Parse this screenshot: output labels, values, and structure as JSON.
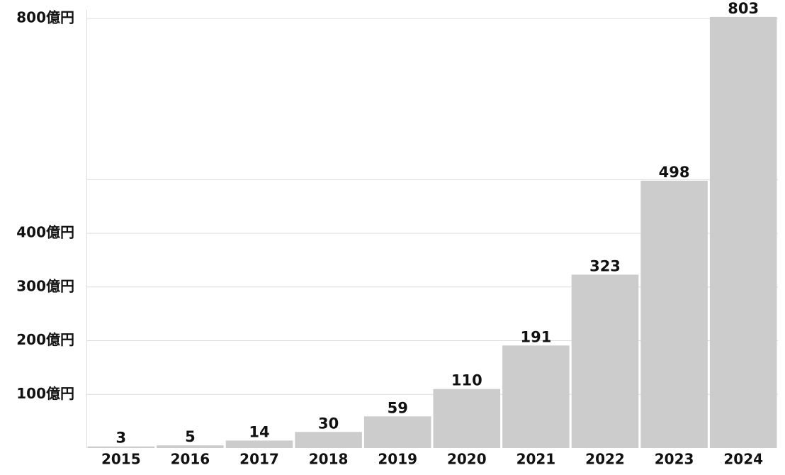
{
  "chart_data": {
    "type": "bar",
    "categories": [
      "2015",
      "2016",
      "2017",
      "2018",
      "2019",
      "2020",
      "2021",
      "2022",
      "2023",
      "2024"
    ],
    "values": [
      3,
      5,
      14,
      30,
      59,
      110,
      191,
      323,
      498,
      803
    ],
    "color": "#cccccc",
    "ylim": [
      0,
      820
    ],
    "yticks": [
      {
        "value": 100,
        "label": "100億円"
      },
      {
        "value": 200,
        "label": "200億円"
      },
      {
        "value": 300,
        "label": "300億円"
      },
      {
        "value": 400,
        "label": "400億円"
      },
      {
        "value": 500,
        "label": null
      },
      {
        "value": 800,
        "label": "800億円"
      }
    ],
    "grid": true
  }
}
